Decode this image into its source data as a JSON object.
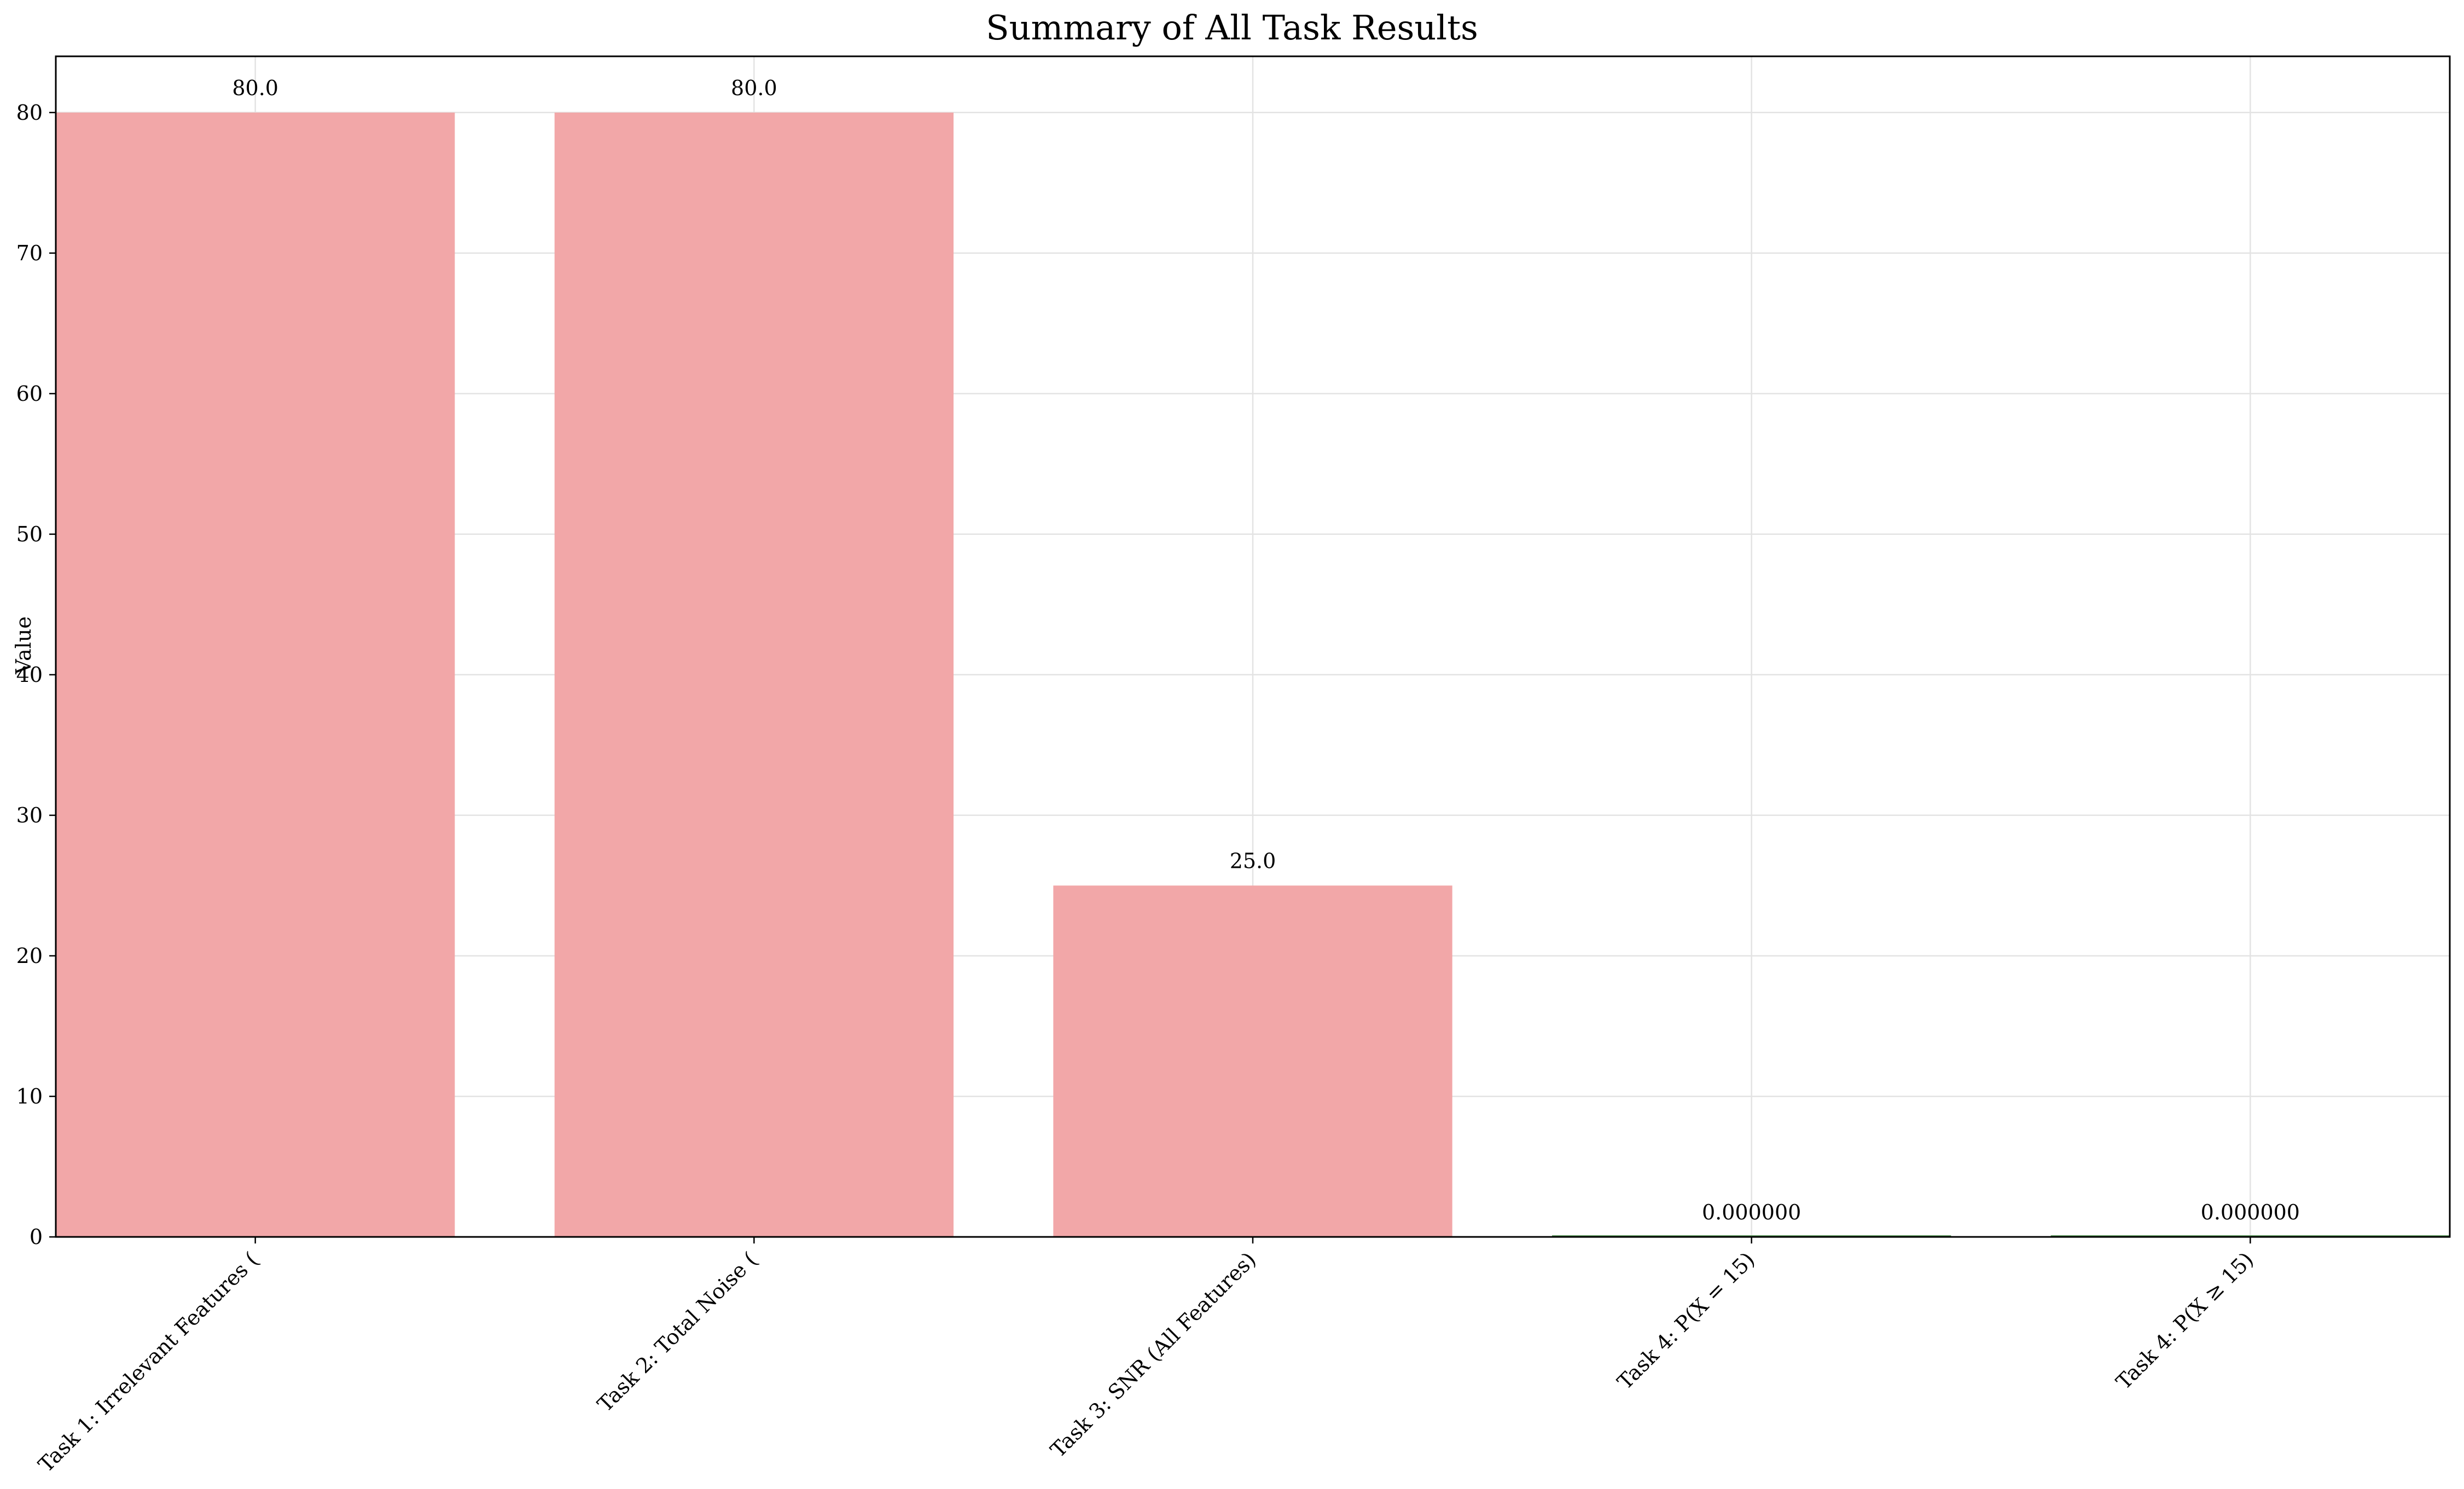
{
  "chart_data": {
    "type": "bar",
    "title": "Summary of All Task Results",
    "xlabel": "",
    "ylabel": "Value",
    "categories": [
      "Task 1: Irrelevant Features (",
      "Task 2: Total Noise (",
      "Task 3: SNR (All Features)",
      "Task 4: P(X = 15)",
      "Task 4: P(X ≥ 15)"
    ],
    "values": [
      80.0,
      80.0,
      25.0,
      0.0,
      0.0
    ],
    "value_labels": [
      "80.0",
      "80.0",
      "25.0",
      "0.000000",
      "0.000000"
    ],
    "bar_colors": [
      "#f2a7a8",
      "#f2a7a8",
      "#f2a7a8",
      "#5a9a5a",
      "#5a9a5a"
    ],
    "ylim": [
      0,
      84
    ],
    "yticks": [
      0,
      10,
      20,
      30,
      40,
      50,
      60,
      70,
      80
    ],
    "grid": true
  }
}
